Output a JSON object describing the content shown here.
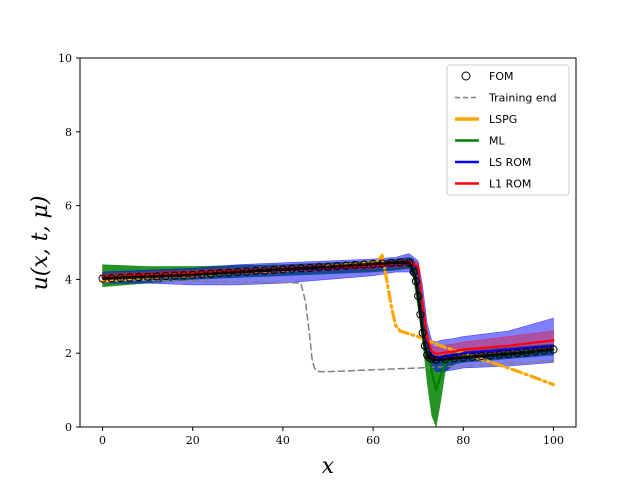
{
  "chart_data": {
    "type": "line",
    "xlabel": "x",
    "ylabel": "u(x, t, μ)",
    "xlim": [
      -5,
      105
    ],
    "ylim": [
      0,
      10
    ],
    "xticks": [
      0,
      20,
      40,
      60,
      80,
      100
    ],
    "yticks": [
      0,
      2,
      4,
      6,
      8,
      10
    ],
    "legend_position": "top-right",
    "grid": false,
    "series": [
      {
        "name": "FOM",
        "style": "markers-hollow-circle",
        "color": "#000000",
        "x": [
          0,
          2,
          4,
          6,
          8,
          10,
          12,
          14,
          16,
          18,
          20,
          22,
          24,
          26,
          28,
          30,
          32,
          34,
          36,
          38,
          40,
          42,
          44,
          46,
          48,
          50,
          52,
          54,
          56,
          58,
          60,
          62,
          64,
          66,
          68,
          69,
          69.5,
          70,
          70.5,
          71,
          71.5,
          72,
          72.5,
          73,
          74,
          76,
          78,
          80,
          82,
          84,
          86,
          88,
          90,
          92,
          94,
          96,
          98,
          100
        ],
        "y": [
          4.02,
          4.03,
          4.04,
          4.05,
          4.06,
          4.07,
          4.08,
          4.09,
          4.1,
          4.11,
          4.12,
          4.14,
          4.15,
          4.17,
          4.18,
          4.2,
          4.21,
          4.23,
          4.24,
          4.26,
          4.27,
          4.29,
          4.3,
          4.31,
          4.33,
          4.34,
          4.36,
          4.37,
          4.39,
          4.4,
          4.42,
          4.43,
          4.45,
          4.46,
          4.45,
          4.2,
          3.95,
          3.55,
          3.05,
          2.55,
          2.2,
          1.95,
          1.88,
          1.84,
          1.82,
          1.84,
          1.86,
          1.88,
          1.9,
          1.92,
          1.94,
          1.96,
          1.98,
          2.0,
          2.02,
          2.05,
          2.08,
          2.1
        ]
      },
      {
        "name": "Training end",
        "style": "dashed",
        "color": "#808080",
        "x": [
          0,
          10,
          20,
          30,
          40,
          44,
          45,
          46,
          46.5,
          47,
          47.5,
          48,
          50,
          60,
          70,
          80,
          90,
          100
        ],
        "y": [
          4.0,
          3.97,
          3.95,
          3.93,
          3.92,
          3.9,
          3.4,
          2.4,
          1.8,
          1.6,
          1.52,
          1.5,
          1.5,
          1.55,
          1.6,
          1.66,
          1.72,
          1.8
        ]
      },
      {
        "name": "LSPG",
        "style": "dashdot",
        "color": "#FFA500",
        "x": [
          0,
          5,
          10,
          15,
          20,
          25,
          30,
          35,
          40,
          45,
          50,
          55,
          60,
          61,
          62,
          63,
          64,
          65,
          66,
          70,
          75,
          80,
          85,
          90,
          95,
          100
        ],
        "y": [
          3.95,
          4.0,
          4.05,
          4.08,
          4.1,
          4.15,
          4.2,
          4.22,
          4.25,
          4.28,
          4.35,
          4.4,
          4.45,
          4.5,
          4.65,
          4.0,
          3.3,
          2.75,
          2.6,
          2.45,
          2.2,
          2.0,
          1.8,
          1.6,
          1.38,
          1.15
        ]
      },
      {
        "name": "ML",
        "style": "solid",
        "color": "#008000",
        "x": [
          0,
          10,
          20,
          30,
          40,
          50,
          60,
          65,
          68,
          69,
          70,
          71,
          72,
          73,
          74,
          75,
          76,
          78,
          80,
          90,
          100
        ],
        "y": [
          4.1,
          4.12,
          4.16,
          4.2,
          4.25,
          4.3,
          4.35,
          4.4,
          4.45,
          4.3,
          3.7,
          2.9,
          2.2,
          1.5,
          1.0,
          1.4,
          1.75,
          1.85,
          1.9,
          2.0,
          2.1
        ]
      },
      {
        "name": "LS ROM",
        "style": "solid",
        "color": "#0000FF",
        "x": [
          0,
          10,
          20,
          30,
          40,
          50,
          60,
          65,
          68,
          70,
          71,
          72,
          73,
          74,
          75,
          78,
          80,
          90,
          100
        ],
        "y": [
          4.05,
          4.1,
          4.15,
          4.2,
          4.25,
          4.3,
          4.35,
          4.4,
          4.45,
          4.3,
          3.2,
          2.3,
          1.95,
          1.88,
          1.9,
          1.95,
          2.0,
          2.1,
          2.2
        ]
      },
      {
        "name": "L1 ROM",
        "style": "solid",
        "color": "#FF0000",
        "x": [
          0,
          10,
          20,
          30,
          40,
          50,
          60,
          65,
          68,
          70,
          71,
          72,
          73,
          74,
          75,
          78,
          80,
          90,
          100
        ],
        "y": [
          4.08,
          4.12,
          4.17,
          4.22,
          4.27,
          4.32,
          4.37,
          4.42,
          4.45,
          4.35,
          3.3,
          2.4,
          2.05,
          1.98,
          2.0,
          2.05,
          2.1,
          2.2,
          2.35
        ]
      }
    ],
    "bands": [
      {
        "for": "ML",
        "color": "#008000",
        "opacity": 0.85,
        "x": [
          0,
          10,
          20,
          30,
          40,
          50,
          60,
          65,
          68,
          69,
          70,
          71,
          72,
          73,
          74,
          75,
          76,
          78,
          80,
          90,
          100
        ],
        "upper": [
          4.4,
          4.35,
          4.35,
          4.38,
          4.4,
          4.45,
          4.5,
          4.55,
          4.6,
          4.55,
          4.2,
          3.4,
          2.6,
          1.95,
          1.8,
          1.85,
          1.95,
          2.0,
          2.05,
          2.15,
          2.25
        ],
        "lower": [
          3.8,
          3.9,
          4.0,
          4.05,
          4.1,
          4.15,
          4.2,
          4.25,
          4.3,
          4.0,
          3.2,
          2.3,
          1.2,
          0.3,
          0.0,
          0.7,
          1.5,
          1.7,
          1.75,
          1.85,
          1.95
        ]
      },
      {
        "for": "LS ROM",
        "color": "#0000FF",
        "opacity": 0.5,
        "x": [
          0,
          10,
          20,
          30,
          40,
          50,
          60,
          65,
          68,
          70,
          71,
          72,
          73,
          74,
          75,
          78,
          80,
          90,
          100
        ],
        "upper": [
          4.2,
          4.25,
          4.3,
          4.4,
          4.45,
          4.5,
          4.55,
          4.6,
          4.7,
          4.5,
          3.8,
          2.8,
          2.35,
          2.3,
          2.35,
          2.4,
          2.45,
          2.6,
          2.95
        ],
        "lower": [
          3.9,
          3.9,
          3.85,
          3.85,
          3.9,
          4.0,
          4.1,
          4.2,
          4.2,
          3.9,
          2.8,
          2.0,
          1.65,
          1.5,
          1.5,
          1.55,
          1.6,
          1.65,
          1.75
        ]
      },
      {
        "for": "L1 ROM",
        "color": "#FF0000",
        "opacity": 0.35,
        "x": [
          0,
          10,
          20,
          30,
          40,
          50,
          60,
          65,
          68,
          70,
          71,
          72,
          73,
          74,
          75,
          78,
          80,
          90,
          100
        ],
        "upper": [
          4.15,
          4.2,
          4.25,
          4.3,
          4.35,
          4.4,
          4.45,
          4.5,
          4.55,
          4.45,
          3.5,
          2.6,
          2.2,
          2.15,
          2.2,
          2.25,
          2.3,
          2.45,
          2.6
        ],
        "lower": [
          4.0,
          4.05,
          4.1,
          4.15,
          4.2,
          4.25,
          4.3,
          4.35,
          4.35,
          4.25,
          3.1,
          2.2,
          1.9,
          1.8,
          1.8,
          1.85,
          1.9,
          1.95,
          2.1
        ]
      }
    ]
  }
}
